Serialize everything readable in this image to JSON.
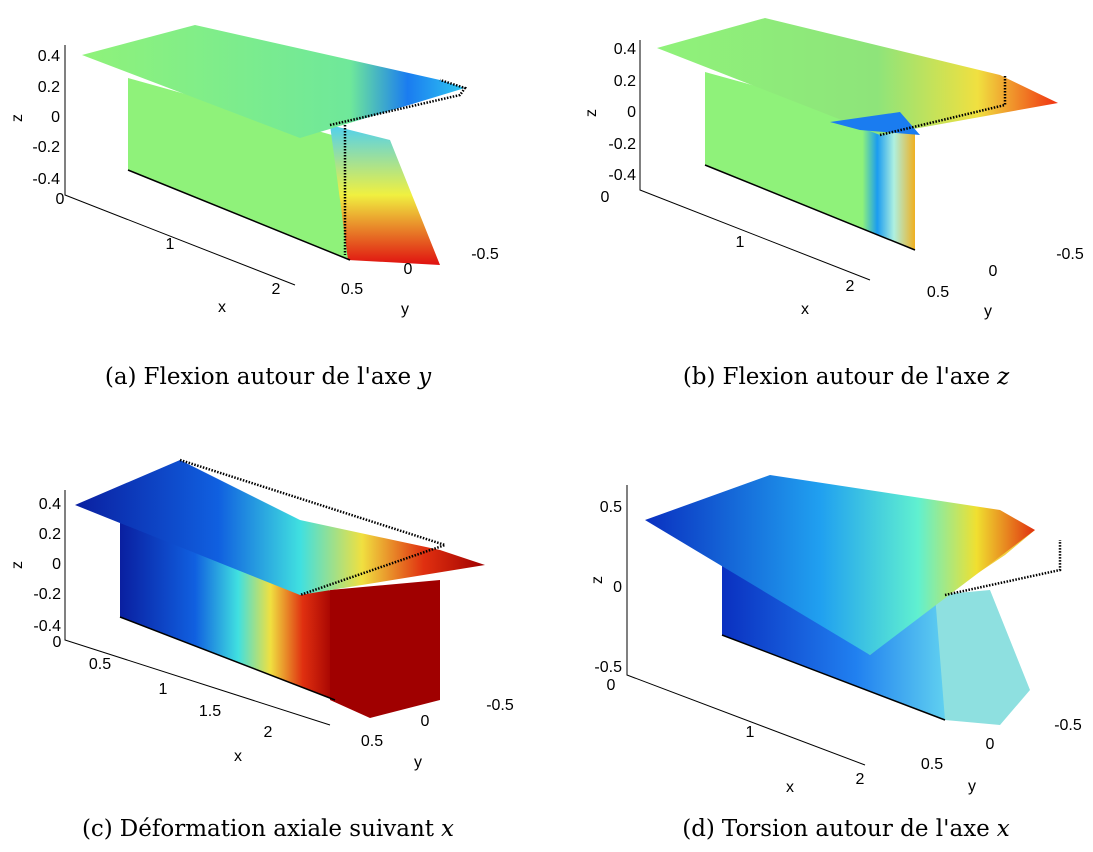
{
  "panels": [
    {
      "caption": {
        "label": "(a)",
        "text": "Flexion autour de l'axe",
        "variable": "y"
      },
      "axis_labels": {
        "x": "x",
        "y": "y",
        "z": "z"
      },
      "z_ticks": [
        "0.4",
        "0.2",
        "0",
        "-0.2",
        "-0.4"
      ],
      "x_ticks": [
        "0",
        "1",
        "2"
      ],
      "y_ticks": [
        "0.5",
        "0",
        "-0.5"
      ]
    },
    {
      "caption": {
        "label": "(b)",
        "text": "Flexion autour de l'axe",
        "variable": "z"
      },
      "axis_labels": {
        "x": "x",
        "y": "y",
        "z": "z"
      },
      "z_ticks": [
        "0.4",
        "0.2",
        "0",
        "-0.2",
        "-0.4"
      ],
      "x_ticks": [
        "0",
        "1",
        "2"
      ],
      "y_ticks": [
        "0.5",
        "0",
        "-0.5"
      ]
    },
    {
      "caption": {
        "label": "(c)",
        "text": "Déformation axiale suivant",
        "variable": "x"
      },
      "axis_labels": {
        "x": "x",
        "y": "y",
        "z": "z"
      },
      "z_ticks": [
        "0.4",
        "0.2",
        "0",
        "-0.2",
        "-0.4"
      ],
      "x_ticks": [
        "0",
        "0.5",
        "1",
        "1.5",
        "2"
      ],
      "y_ticks": [
        "0.5",
        "0",
        "-0.5"
      ]
    },
    {
      "caption": {
        "label": "(d)",
        "text": "Torsion autour de l'axe",
        "variable": "x"
      },
      "axis_labels": {
        "x": "x",
        "y": "y",
        "z": "z"
      },
      "z_ticks": [
        "0.5",
        "0",
        "-0.5"
      ],
      "x_ticks": [
        "0",
        "1",
        "2"
      ],
      "y_ticks": [
        "0.5",
        "0",
        "-0.5"
      ]
    }
  ]
}
